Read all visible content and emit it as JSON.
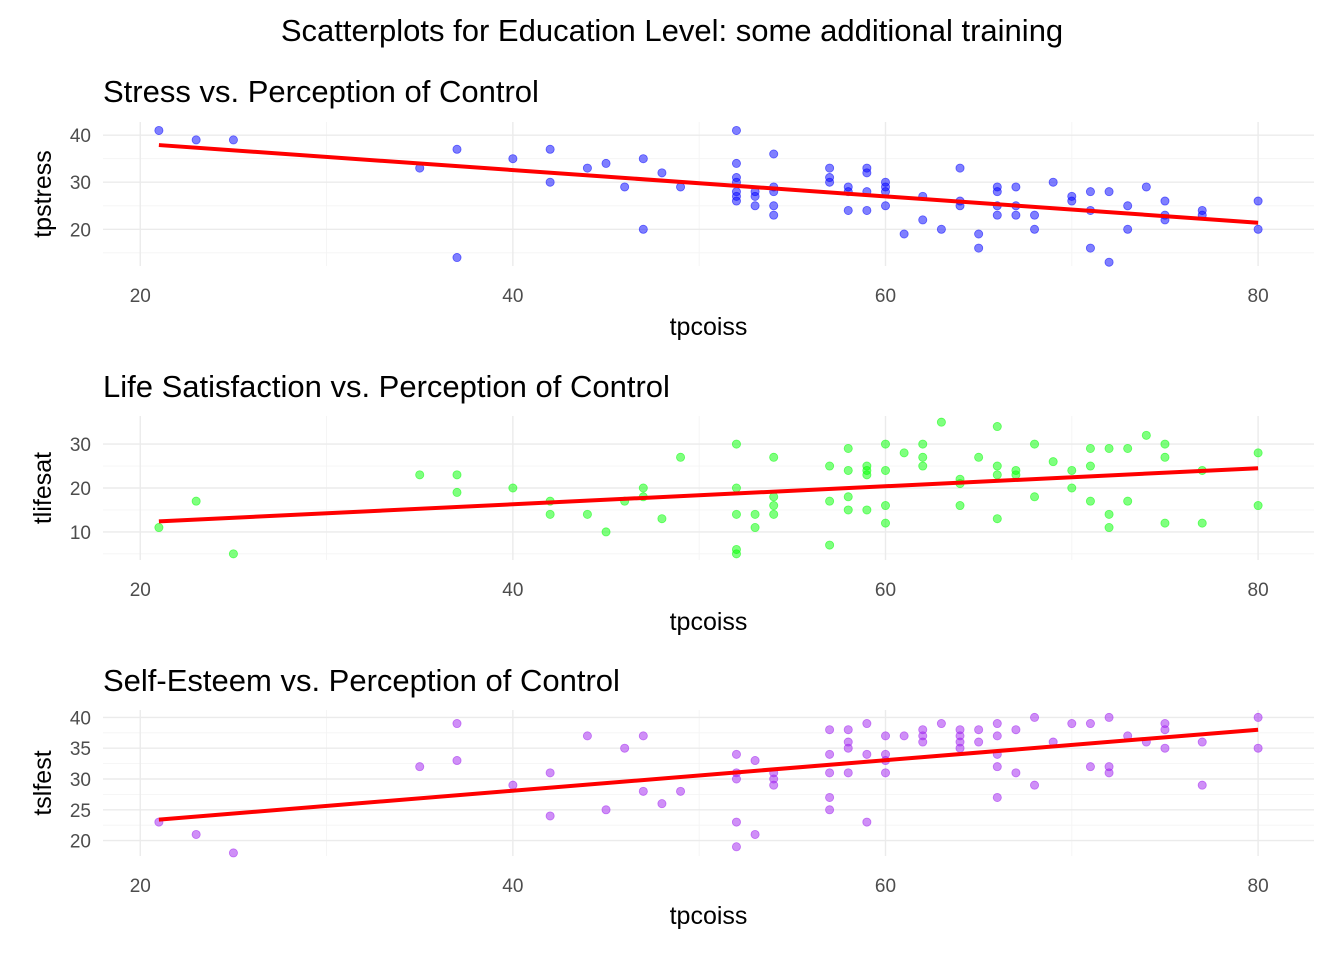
{
  "title": "Scatterplots for Education Level: some additional training",
  "colors": {
    "trend_line": "#ff0000",
    "grid": "#ebebeb",
    "tick_text": "#4d4d4d"
  },
  "chart_data": [
    {
      "type": "scatter",
      "title": "Stress vs. Perception of Control",
      "xlabel": "tpcoiss",
      "ylabel": "tpstress",
      "xlim": [
        18,
        83
      ],
      "ylim": [
        12.2,
        42.8
      ],
      "x_ticks": [
        20,
        40,
        60,
        80
      ],
      "y_ticks": [
        20,
        30,
        40
      ],
      "grid": true,
      "point_color": "#0000ff",
      "trend": {
        "x": [
          21,
          80
        ],
        "y": [
          37.9,
          21.4
        ]
      },
      "points": [
        [
          21,
          41
        ],
        [
          23,
          39
        ],
        [
          25,
          39
        ],
        [
          35,
          33
        ],
        [
          37,
          37
        ],
        [
          37,
          14
        ],
        [
          40,
          35
        ],
        [
          42,
          37
        ],
        [
          42,
          30
        ],
        [
          44,
          33
        ],
        [
          45,
          34
        ],
        [
          46,
          29
        ],
        [
          47,
          35
        ],
        [
          47,
          20
        ],
        [
          48,
          32
        ],
        [
          49,
          29
        ],
        [
          52,
          41
        ],
        [
          52,
          34
        ],
        [
          52,
          31
        ],
        [
          52,
          30
        ],
        [
          52,
          28
        ],
        [
          52,
          27
        ],
        [
          52,
          26
        ],
        [
          53,
          28
        ],
        [
          53,
          27
        ],
        [
          53,
          25
        ],
        [
          54,
          36
        ],
        [
          54,
          29
        ],
        [
          54,
          28
        ],
        [
          54,
          25
        ],
        [
          54,
          23
        ],
        [
          57,
          33
        ],
        [
          57,
          31
        ],
        [
          57,
          30
        ],
        [
          58,
          29
        ],
        [
          58,
          28
        ],
        [
          58,
          24
        ],
        [
          59,
          33
        ],
        [
          59,
          32
        ],
        [
          59,
          28
        ],
        [
          59,
          24
        ],
        [
          60,
          30
        ],
        [
          60,
          29
        ],
        [
          60,
          28
        ],
        [
          60,
          25
        ],
        [
          61,
          19
        ],
        [
          62,
          27
        ],
        [
          62,
          22
        ],
        [
          63,
          20
        ],
        [
          64,
          33
        ],
        [
          64,
          26
        ],
        [
          64,
          25
        ],
        [
          65,
          19
        ],
        [
          65,
          16
        ],
        [
          66,
          29
        ],
        [
          66,
          28
        ],
        [
          66,
          25
        ],
        [
          66,
          23
        ],
        [
          67,
          29
        ],
        [
          67,
          25
        ],
        [
          67,
          23
        ],
        [
          68,
          23
        ],
        [
          68,
          20
        ],
        [
          69,
          30
        ],
        [
          70,
          27
        ],
        [
          70,
          26
        ],
        [
          71,
          28
        ],
        [
          71,
          24
        ],
        [
          71,
          16
        ],
        [
          72,
          28
        ],
        [
          72,
          13
        ],
        [
          73,
          25
        ],
        [
          73,
          20
        ],
        [
          74,
          29
        ],
        [
          75,
          26
        ],
        [
          75,
          23
        ],
        [
          75,
          22
        ],
        [
          77,
          24
        ],
        [
          77,
          23
        ],
        [
          80,
          26
        ],
        [
          80,
          20
        ]
      ]
    },
    {
      "type": "scatter",
      "title": "Life Satisfaction vs. Perception of Control",
      "xlabel": "tpcoiss",
      "ylabel": "tlifesat",
      "xlim": [
        18,
        83
      ],
      "ylim": [
        3.6,
        36.4
      ],
      "x_ticks": [
        20,
        40,
        60,
        80
      ],
      "y_ticks": [
        10,
        20,
        30
      ],
      "grid": true,
      "point_color": "#00ff00",
      "trend": {
        "x": [
          21,
          80
        ],
        "y": [
          12.4,
          24.5
        ]
      },
      "points": [
        [
          21,
          11
        ],
        [
          23,
          17
        ],
        [
          25,
          5
        ],
        [
          35,
          23
        ],
        [
          37,
          23
        ],
        [
          37,
          19
        ],
        [
          40,
          20
        ],
        [
          42,
          17
        ],
        [
          42,
          14
        ],
        [
          44,
          14
        ],
        [
          45,
          10
        ],
        [
          46,
          17
        ],
        [
          47,
          20
        ],
        [
          47,
          18
        ],
        [
          48,
          13
        ],
        [
          49,
          27
        ],
        [
          52,
          30
        ],
        [
          52,
          20
        ],
        [
          52,
          14
        ],
        [
          52,
          6
        ],
        [
          52,
          5
        ],
        [
          53,
          14
        ],
        [
          53,
          11
        ],
        [
          54,
          27
        ],
        [
          54,
          18
        ],
        [
          54,
          16
        ],
        [
          54,
          14
        ],
        [
          57,
          25
        ],
        [
          57,
          17
        ],
        [
          57,
          7
        ],
        [
          58,
          29
        ],
        [
          58,
          24
        ],
        [
          58,
          18
        ],
        [
          58,
          15
        ],
        [
          59,
          25
        ],
        [
          59,
          24
        ],
        [
          59,
          23
        ],
        [
          59,
          15
        ],
        [
          60,
          30
        ],
        [
          60,
          24
        ],
        [
          60,
          16
        ],
        [
          60,
          12
        ],
        [
          61,
          28
        ],
        [
          62,
          30
        ],
        [
          62,
          27
        ],
        [
          62,
          25
        ],
        [
          63,
          35
        ],
        [
          64,
          22
        ],
        [
          64,
          21
        ],
        [
          64,
          16
        ],
        [
          65,
          27
        ],
        [
          66,
          34
        ],
        [
          66,
          25
        ],
        [
          66,
          23
        ],
        [
          66,
          13
        ],
        [
          67,
          24
        ],
        [
          67,
          23
        ],
        [
          68,
          30
        ],
        [
          68,
          18
        ],
        [
          69,
          26
        ],
        [
          70,
          24
        ],
        [
          70,
          20
        ],
        [
          71,
          29
        ],
        [
          71,
          25
        ],
        [
          71,
          17
        ],
        [
          72,
          29
        ],
        [
          72,
          14
        ],
        [
          72,
          11
        ],
        [
          73,
          29
        ],
        [
          73,
          17
        ],
        [
          74,
          32
        ],
        [
          75,
          30
        ],
        [
          75,
          27
        ],
        [
          75,
          12
        ],
        [
          77,
          24
        ],
        [
          77,
          12
        ],
        [
          80,
          28
        ],
        [
          80,
          16
        ]
      ]
    },
    {
      "type": "scatter",
      "title": "Self-Esteem vs. Perception of Control",
      "xlabel": "tpcoiss",
      "ylabel": "tslfest",
      "xlim": [
        18,
        83
      ],
      "ylim": [
        17.5,
        41.2
      ],
      "x_ticks": [
        20,
        40,
        60,
        80
      ],
      "y_ticks": [
        20,
        25,
        30,
        35,
        40
      ],
      "grid": true,
      "point_color": "#a020f0",
      "trend": {
        "x": [
          21,
          80
        ],
        "y": [
          23.4,
          38.0
        ]
      },
      "points": [
        [
          21,
          23
        ],
        [
          23,
          21
        ],
        [
          25,
          18
        ],
        [
          35,
          32
        ],
        [
          37,
          39
        ],
        [
          37,
          33
        ],
        [
          40,
          29
        ],
        [
          42,
          31
        ],
        [
          42,
          24
        ],
        [
          44,
          37
        ],
        [
          45,
          25
        ],
        [
          46,
          35
        ],
        [
          47,
          37
        ],
        [
          47,
          28
        ],
        [
          48,
          26
        ],
        [
          49,
          28
        ],
        [
          52,
          34
        ],
        [
          52,
          31
        ],
        [
          52,
          30
        ],
        [
          52,
          23
        ],
        [
          52,
          19
        ],
        [
          53,
          33
        ],
        [
          53,
          21
        ],
        [
          54,
          31
        ],
        [
          54,
          30
        ],
        [
          54,
          29
        ],
        [
          57,
          38
        ],
        [
          57,
          34
        ],
        [
          57,
          31
        ],
        [
          57,
          27
        ],
        [
          57,
          25
        ],
        [
          58,
          38
        ],
        [
          58,
          36
        ],
        [
          58,
          35
        ],
        [
          58,
          31
        ],
        [
          59,
          39
        ],
        [
          59,
          34
        ],
        [
          59,
          23
        ],
        [
          60,
          37
        ],
        [
          60,
          34
        ],
        [
          60,
          33
        ],
        [
          60,
          31
        ],
        [
          61,
          37
        ],
        [
          62,
          38
        ],
        [
          62,
          37
        ],
        [
          62,
          36
        ],
        [
          63,
          39
        ],
        [
          64,
          38
        ],
        [
          64,
          37
        ],
        [
          64,
          36
        ],
        [
          64,
          35
        ],
        [
          65,
          38
        ],
        [
          65,
          36
        ],
        [
          66,
          39
        ],
        [
          66,
          37
        ],
        [
          66,
          34
        ],
        [
          66,
          32
        ],
        [
          66,
          27
        ],
        [
          67,
          38
        ],
        [
          67,
          31
        ],
        [
          68,
          40
        ],
        [
          68,
          29
        ],
        [
          69,
          36
        ],
        [
          70,
          39
        ],
        [
          71,
          39
        ],
        [
          71,
          32
        ],
        [
          72,
          40
        ],
        [
          72,
          32
        ],
        [
          72,
          31
        ],
        [
          73,
          37
        ],
        [
          74,
          36
        ],
        [
          75,
          39
        ],
        [
          75,
          38
        ],
        [
          75,
          35
        ],
        [
          77,
          36
        ],
        [
          77,
          29
        ],
        [
          80,
          40
        ],
        [
          80,
          35
        ]
      ]
    }
  ]
}
